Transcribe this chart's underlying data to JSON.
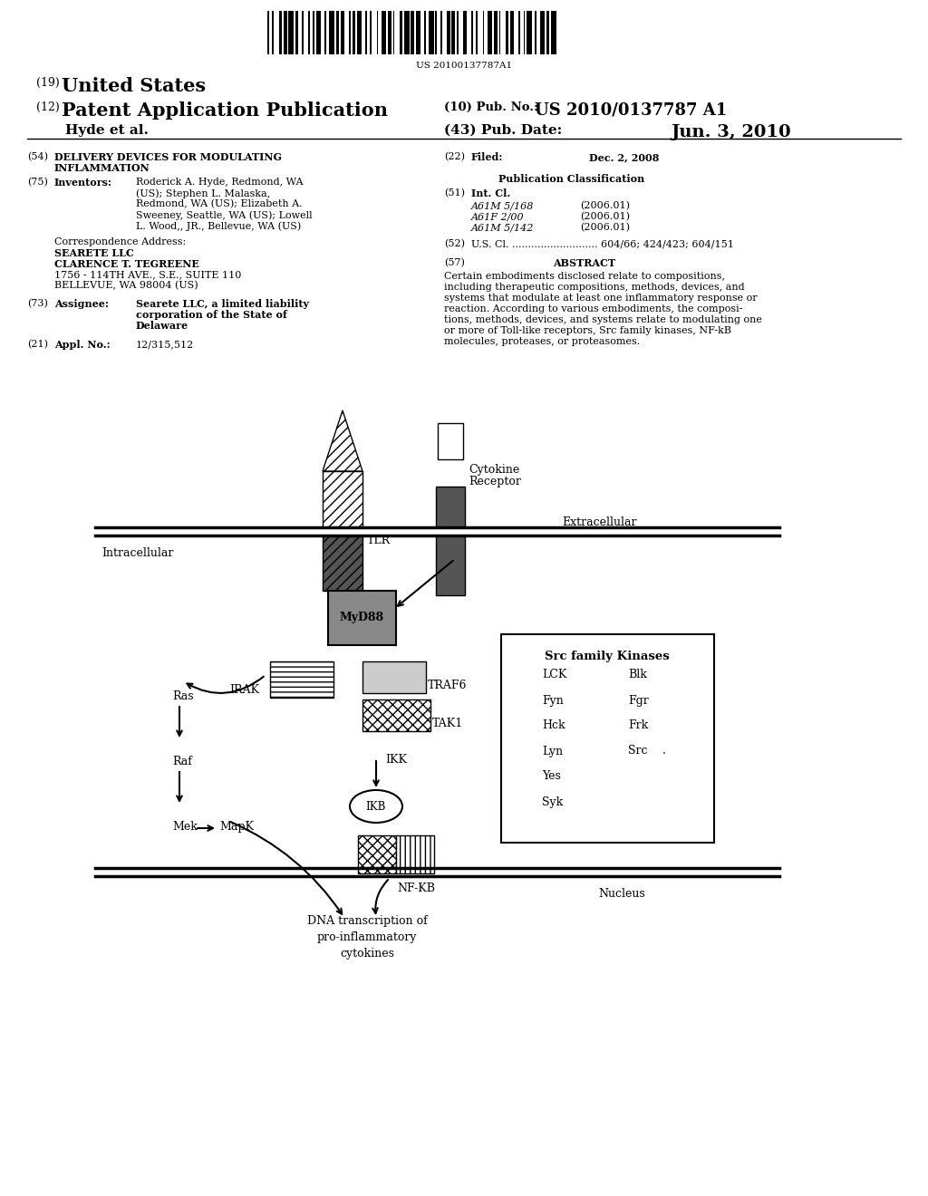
{
  "barcode_text": "US 20100137787A1",
  "header_19": "(19)",
  "header_united_states": "United States",
  "header_12": "(12)",
  "header_pat_app": "Patent Application Publication",
  "header_10_label": "(10) Pub. No.:",
  "header_pub_no": "US 2010/0137787 A1",
  "header_hyde": "Hyde et al.",
  "header_43_label": "(43) Pub. Date:",
  "header_pub_date": "Jun. 3, 2010",
  "f54_label": "(54)",
  "f54_text1": "DELIVERY DEVICES FOR MODULATING",
  "f54_text2": "INFLAMMATION",
  "f22_label": "(22)",
  "f22_field": "Filed:",
  "f22_date": "Dec. 2, 2008",
  "f75_label": "(75)",
  "f75_field": "Inventors:",
  "f75_line1": "Roderick A. Hyde, Redmond, WA",
  "f75_line2": "(US); Stephen L. Malaska,",
  "f75_line3": "Redmond, WA (US); Elizabeth A.",
  "f75_line4": "Sweeney, Seattle, WA (US); Lowell",
  "f75_line5": "L. Wood,, JR., Bellevue, WA (US)",
  "corr1": "Correspondence Address:",
  "corr2": "SEARETE LLC",
  "corr3": "CLARENCE T. TEGREENE",
  "corr4": "1756 - 114TH AVE., S.E., SUITE 110",
  "corr5": "BELLEVUE, WA 98004 (US)",
  "f73_label": "(73)",
  "f73_field": "Assignee:",
  "f73_line1": "Searete LLC, a limited liability",
  "f73_line2": "corporation of the State of",
  "f73_line3": "Delaware",
  "f21_label": "(21)",
  "f21_field": "Appl. No.:",
  "f21_text": "12/315,512",
  "pub_class": "Publication Classification",
  "f51_label": "(51)",
  "f51_field": "Int. Cl.",
  "f51_a": "A61M 5/168",
  "f51_b": "A61F 2/00",
  "f51_c": "A61M 5/142",
  "f51_year": "(2006.01)",
  "f52_label": "(52)",
  "f52_text": "U.S. Cl. ........................... 604/66; 424/423; 604/151",
  "f57_label": "(57)",
  "f57_field": "ABSTRACT",
  "abstract_line1": "Certain embodiments disclosed relate to compositions,",
  "abstract_line2": "including therapeutic compositions, methods, devices, and",
  "abstract_line3": "systems that modulate at least one inflammatory response or",
  "abstract_line4": "reaction. According to various embodiments, the composi-",
  "abstract_line5": "tions, methods, devices, and systems relate to modulating one",
  "abstract_line6": "or more of Toll-like receptors, Src family kinases, NF-kB",
  "abstract_line7": "molecules, proteases, or proteasomes.",
  "bg_color": "#ffffff"
}
